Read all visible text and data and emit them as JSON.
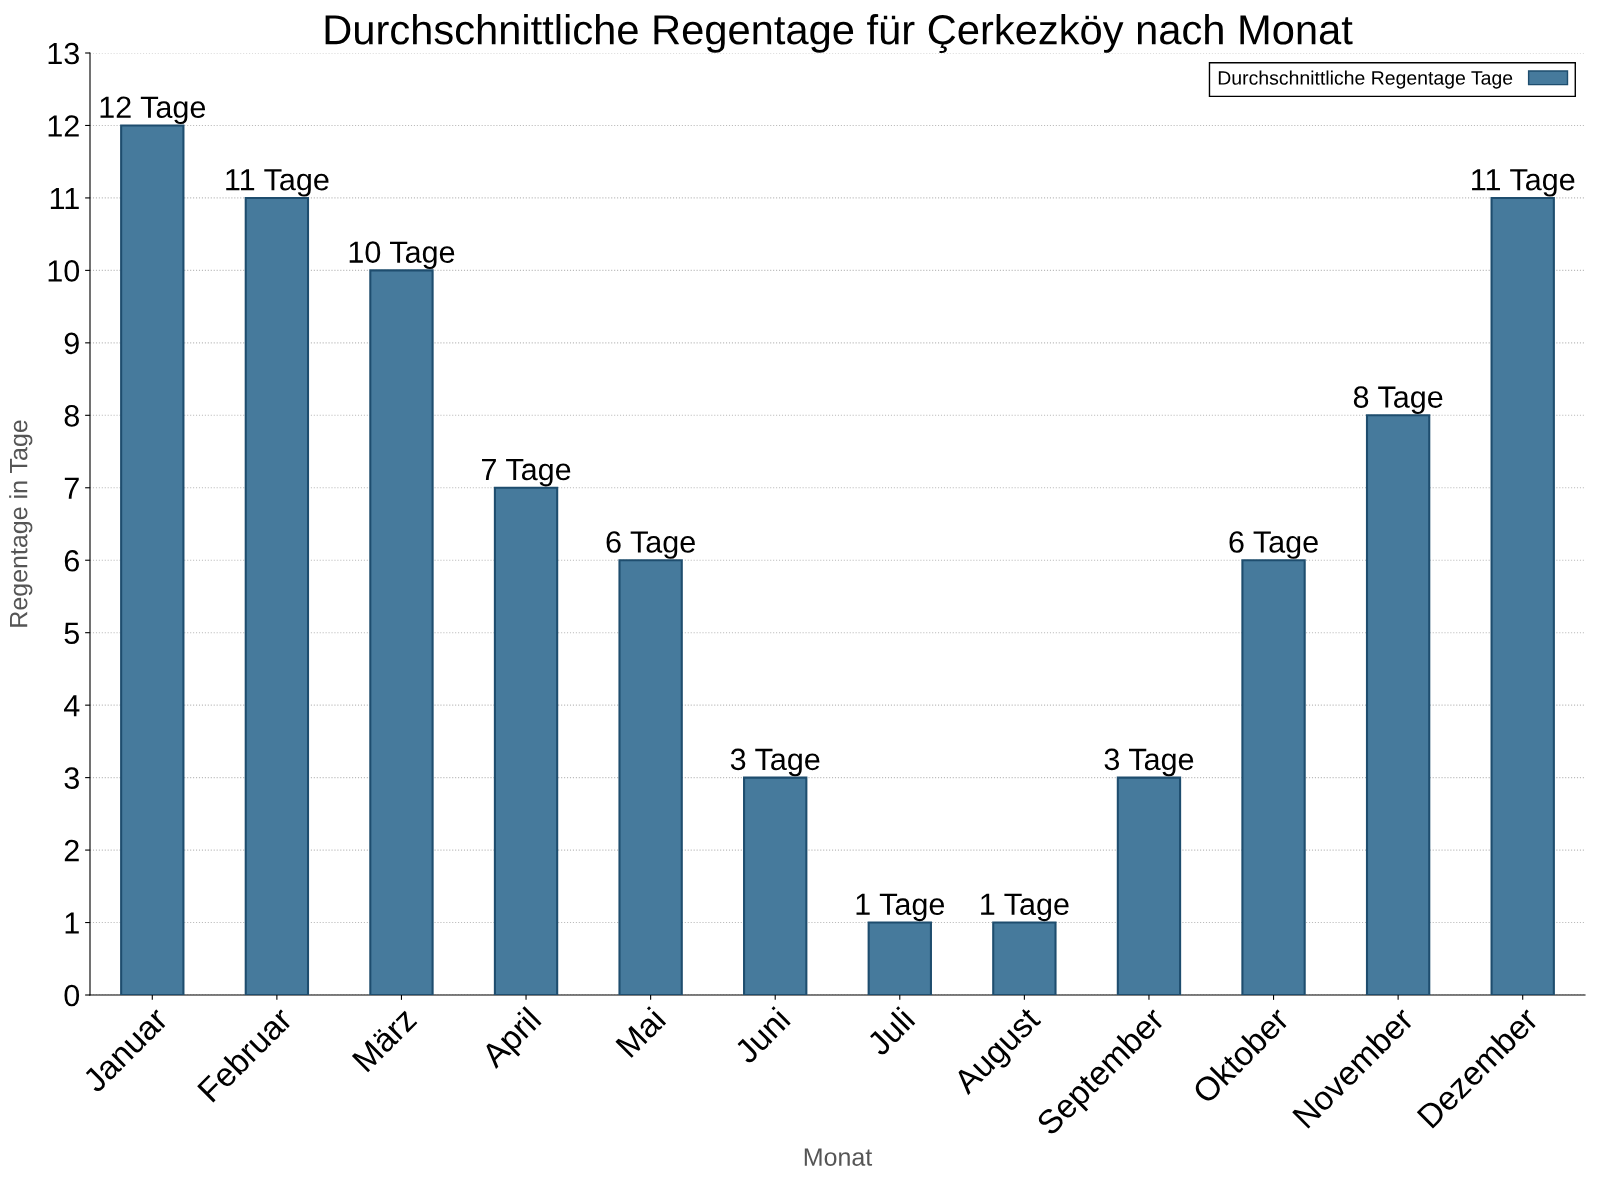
{
  "chart_data": {
    "type": "bar",
    "title": "Durchschnittliche Regentage für Çerkezköy nach Monat",
    "xlabel": "Monat",
    "ylabel": "Regentage in Tage",
    "categories": [
      "Januar",
      "Februar",
      "März",
      "April",
      "Mai",
      "Juni",
      "Juli",
      "August",
      "September",
      "Oktober",
      "November",
      "Dezember"
    ],
    "series": [
      {
        "name": "Durchschnittliche Regentage Tage",
        "color": "#467a9c",
        "values": [
          12,
          11,
          10,
          7,
          6,
          3,
          1,
          1,
          3,
          6,
          8,
          11
        ],
        "value_labels": [
          "12 Tage",
          "11 Tage",
          "10 Tage",
          "7 Tage",
          "6 Tage",
          "3 Tage",
          "1 Tage",
          "1 Tage",
          "3 Tage",
          "6 Tage",
          "8 Tage",
          "11 Tage"
        ]
      }
    ],
    "ylim": [
      0,
      13
    ],
    "yticks": [
      0,
      1,
      2,
      3,
      4,
      5,
      6,
      7,
      8,
      9,
      10,
      11,
      12,
      13
    ],
    "grid": "y",
    "legend": "top right"
  }
}
